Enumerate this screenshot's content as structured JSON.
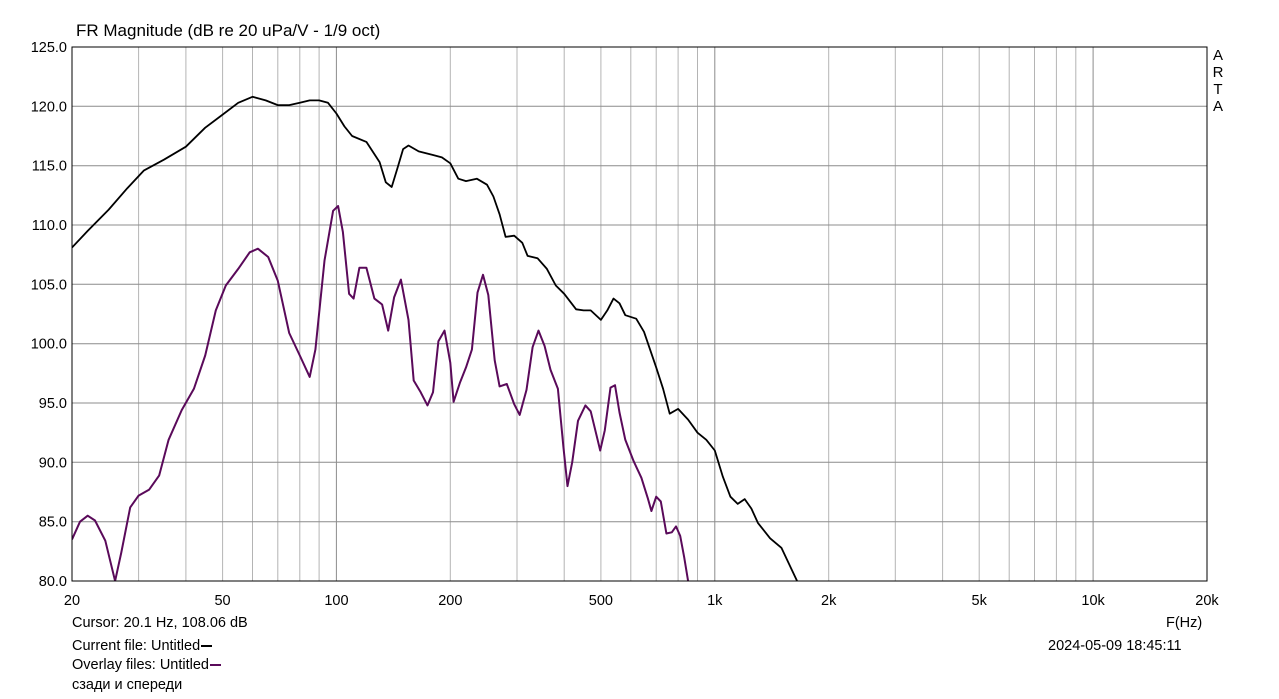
{
  "title": "FR Magnitude (dB re 20 uPa/V - 1/9 oct)",
  "watermark": [
    "A",
    "R",
    "T",
    "A"
  ],
  "footer": {
    "cursor": "Cursor: 20.1 Hz, 108.06 dB",
    "current_file": "Current file: Untitled",
    "overlay_files": "Overlay files: Untitled",
    "overlay_name": "сзади и спереди",
    "xlabel": "F(Hz)",
    "datetime": "2024-05-09   18:45:11"
  },
  "colors": {
    "current": "#000000",
    "overlay": "#5a0a5a",
    "grid": "#b4b4b4",
    "background": "#ffffff"
  },
  "chart_data": {
    "type": "line",
    "title": "FR Magnitude (dB re 20 uPa/V - 1/9 oct)",
    "xlabel": "F(Hz)",
    "ylabel": "",
    "xscale": "log",
    "xlim": [
      20,
      20000
    ],
    "ylim": [
      80,
      125
    ],
    "grid": true,
    "x_tick_labels": [
      {
        "value": 20,
        "label": "20"
      },
      {
        "value": 50,
        "label": "50"
      },
      {
        "value": 100,
        "label": "100"
      },
      {
        "value": 200,
        "label": "200"
      },
      {
        "value": 500,
        "label": "500"
      },
      {
        "value": 1000,
        "label": "1k"
      },
      {
        "value": 2000,
        "label": "2k"
      },
      {
        "value": 5000,
        "label": "5k"
      },
      {
        "value": 10000,
        "label": "10k"
      },
      {
        "value": 20000,
        "label": "20k"
      }
    ],
    "y_tick_labels": [
      {
        "value": 125,
        "label": "125.0"
      },
      {
        "value": 120,
        "label": "120.0"
      },
      {
        "value": 115,
        "label": "115.0"
      },
      {
        "value": 110,
        "label": "110.0"
      },
      {
        "value": 105,
        "label": "105.0"
      },
      {
        "value": 100,
        "label": "100.0"
      },
      {
        "value": 95,
        "label": "95.0"
      },
      {
        "value": 90,
        "label": "90.0"
      },
      {
        "value": 85,
        "label": "85.0"
      },
      {
        "value": 80,
        "label": "80.0"
      }
    ],
    "series": [
      {
        "name": "Untitled",
        "role": "current",
        "color": "#000000",
        "points": [
          [
            20,
            108.1
          ],
          [
            22,
            109.5
          ],
          [
            25,
            111.3
          ],
          [
            28,
            113.1
          ],
          [
            31,
            114.6
          ],
          [
            35,
            115.5
          ],
          [
            40,
            116.6
          ],
          [
            45,
            118.2
          ],
          [
            50,
            119.3
          ],
          [
            55,
            120.3
          ],
          [
            60,
            120.8
          ],
          [
            65,
            120.5
          ],
          [
            70,
            120.1
          ],
          [
            75,
            120.1
          ],
          [
            80,
            120.3
          ],
          [
            85,
            120.5
          ],
          [
            90,
            120.5
          ],
          [
            95,
            120.3
          ],
          [
            100,
            119.4
          ],
          [
            105,
            118.3
          ],
          [
            110,
            117.5
          ],
          [
            120,
            117.0
          ],
          [
            130,
            115.3
          ],
          [
            135,
            113.6
          ],
          [
            140,
            113.2
          ],
          [
            145,
            114.8
          ],
          [
            150,
            116.4
          ],
          [
            155,
            116.7
          ],
          [
            165,
            116.2
          ],
          [
            180,
            115.9
          ],
          [
            190,
            115.7
          ],
          [
            200,
            115.2
          ],
          [
            210,
            113.9
          ],
          [
            220,
            113.7
          ],
          [
            235,
            113.9
          ],
          [
            250,
            113.4
          ],
          [
            260,
            112.4
          ],
          [
            270,
            110.9
          ],
          [
            280,
            109.0
          ],
          [
            295,
            109.1
          ],
          [
            310,
            108.5
          ],
          [
            320,
            107.4
          ],
          [
            340,
            107.2
          ],
          [
            360,
            106.3
          ],
          [
            380,
            104.9
          ],
          [
            400,
            104.2
          ],
          [
            430,
            102.9
          ],
          [
            450,
            102.8
          ],
          [
            470,
            102.8
          ],
          [
            500,
            102.0
          ],
          [
            520,
            102.8
          ],
          [
            540,
            103.8
          ],
          [
            560,
            103.4
          ],
          [
            580,
            102.4
          ],
          [
            620,
            102.1
          ],
          [
            650,
            101.0
          ],
          [
            700,
            98.0
          ],
          [
            730,
            96.2
          ],
          [
            760,
            94.1
          ],
          [
            800,
            94.5
          ],
          [
            850,
            93.6
          ],
          [
            900,
            92.5
          ],
          [
            950,
            91.9
          ],
          [
            1000,
            91.0
          ],
          [
            1050,
            88.8
          ],
          [
            1100,
            87.1
          ],
          [
            1150,
            86.5
          ],
          [
            1200,
            86.9
          ],
          [
            1250,
            86.1
          ],
          [
            1300,
            84.9
          ],
          [
            1400,
            83.6
          ],
          [
            1500,
            82.8
          ],
          [
            1600,
            80.9
          ],
          [
            1650,
            80.0
          ]
        ]
      },
      {
        "name": "Untitled",
        "role": "overlay",
        "color": "#5a0a5a",
        "points": [
          [
            20,
            83.5
          ],
          [
            21,
            85.0
          ],
          [
            22,
            85.5
          ],
          [
            23,
            85.1
          ],
          [
            24.5,
            83.4
          ],
          [
            26,
            80.0
          ],
          [
            27,
            82.4
          ],
          [
            28.5,
            86.2
          ],
          [
            30,
            87.2
          ],
          [
            32,
            87.7
          ],
          [
            34,
            88.9
          ],
          [
            36,
            91.9
          ],
          [
            39,
            94.4
          ],
          [
            42,
            96.2
          ],
          [
            45,
            99.0
          ],
          [
            48,
            102.8
          ],
          [
            51,
            104.9
          ],
          [
            55,
            106.3
          ],
          [
            59,
            107.7
          ],
          [
            62,
            108.0
          ],
          [
            66,
            107.3
          ],
          [
            70,
            105.3
          ],
          [
            75,
            100.9
          ],
          [
            80,
            99.0
          ],
          [
            85,
            97.2
          ],
          [
            88,
            99.5
          ],
          [
            93,
            107.0
          ],
          [
            98,
            111.2
          ],
          [
            101,
            111.6
          ],
          [
            104,
            109.4
          ],
          [
            108,
            104.2
          ],
          [
            111,
            103.8
          ],
          [
            115,
            106.4
          ],
          [
            120,
            106.4
          ],
          [
            126,
            103.8
          ],
          [
            132,
            103.3
          ],
          [
            137,
            101.1
          ],
          [
            142,
            103.9
          ],
          [
            148,
            105.4
          ],
          [
            155,
            102.0
          ],
          [
            160,
            96.9
          ],
          [
            167,
            95.9
          ],
          [
            174,
            94.8
          ],
          [
            180,
            95.9
          ],
          [
            186,
            100.2
          ],
          [
            193,
            101.1
          ],
          [
            200,
            98.4
          ],
          [
            204,
            95.1
          ],
          [
            212,
            96.7
          ],
          [
            220,
            98.0
          ],
          [
            228,
            99.5
          ],
          [
            236,
            104.3
          ],
          [
            244,
            105.8
          ],
          [
            252,
            104.1
          ],
          [
            262,
            98.6
          ],
          [
            270,
            96.4
          ],
          [
            282,
            96.6
          ],
          [
            295,
            94.9
          ],
          [
            305,
            94.0
          ],
          [
            318,
            96.1
          ],
          [
            330,
            99.7
          ],
          [
            342,
            101.1
          ],
          [
            355,
            99.8
          ],
          [
            368,
            97.8
          ],
          [
            385,
            96.2
          ],
          [
            398,
            91.3
          ],
          [
            408,
            88.0
          ],
          [
            420,
            90.0
          ],
          [
            435,
            93.5
          ],
          [
            455,
            94.8
          ],
          [
            470,
            94.3
          ],
          [
            485,
            92.5
          ],
          [
            498,
            91.0
          ],
          [
            512,
            92.7
          ],
          [
            530,
            96.3
          ],
          [
            545,
            96.5
          ],
          [
            560,
            94.2
          ],
          [
            580,
            91.9
          ],
          [
            610,
            90.1
          ],
          [
            640,
            88.7
          ],
          [
            665,
            87.0
          ],
          [
            680,
            85.9
          ],
          [
            700,
            87.1
          ],
          [
            720,
            86.7
          ],
          [
            745,
            84.0
          ],
          [
            770,
            84.1
          ],
          [
            790,
            84.6
          ],
          [
            810,
            83.8
          ],
          [
            830,
            82.0
          ],
          [
            850,
            80.0
          ]
        ]
      }
    ]
  }
}
